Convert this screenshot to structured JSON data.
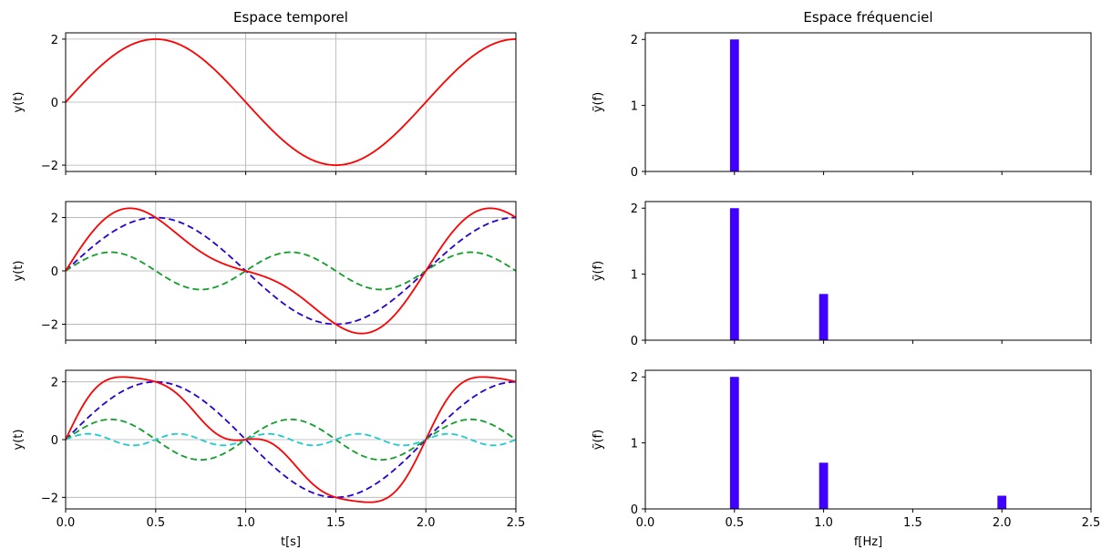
{
  "chart_data": [
    {
      "type": "line",
      "panel": "time-1",
      "title": "Espace temporel",
      "xlabel": "",
      "ylabel": "y(t)",
      "xlim": [
        0,
        2.5
      ],
      "ylim": [
        -2.2,
        2.2
      ],
      "xticks": [
        "0.0",
        "0.5",
        "1.0",
        "1.5",
        "2.0",
        "2.5"
      ],
      "yticks": [
        -2,
        0,
        2
      ],
      "ytick_labels": [
        "−2",
        "0",
        "2"
      ],
      "grid": true,
      "series": [
        {
          "role": "total",
          "color": "#ff0000",
          "style": "solid",
          "components": [
            {
              "amp": 2,
              "freq": 0.5
            }
          ]
        }
      ]
    },
    {
      "type": "line",
      "panel": "time-2",
      "title": "",
      "xlabel": "",
      "ylabel": "y(t)",
      "xlim": [
        0,
        2.5
      ],
      "ylim": [
        -2.6,
        2.6
      ],
      "xticks": [
        "0.0",
        "0.5",
        "1.0",
        "1.5",
        "2.0",
        "2.5"
      ],
      "yticks": [
        -2,
        0,
        2
      ],
      "ytick_labels": [
        "−2",
        "0",
        "2"
      ],
      "grid": true,
      "series": [
        {
          "role": "component",
          "color": "#2a00d4",
          "style": "dashed",
          "components": [
            {
              "amp": 2,
              "freq": 0.5
            }
          ]
        },
        {
          "role": "component",
          "color": "#109e2a",
          "style": "dashed",
          "components": [
            {
              "amp": 0.7,
              "freq": 1
            }
          ]
        },
        {
          "role": "total",
          "color": "#ff0000",
          "style": "solid",
          "components": [
            {
              "amp": 2,
              "freq": 0.5
            },
            {
              "amp": 0.7,
              "freq": 1
            }
          ]
        }
      ]
    },
    {
      "type": "line",
      "panel": "time-3",
      "title": "",
      "xlabel": "t[s]",
      "ylabel": "y(t)",
      "xlim": [
        0,
        2.5
      ],
      "ylim": [
        -2.4,
        2.4
      ],
      "xticks": [
        "0.0",
        "0.5",
        "1.0",
        "1.5",
        "2.0",
        "2.5"
      ],
      "yticks": [
        -2,
        0,
        2
      ],
      "ytick_labels": [
        "−2",
        "0",
        "2"
      ],
      "grid": true,
      "series": [
        {
          "role": "component",
          "color": "#2a00d4",
          "style": "dashed",
          "components": [
            {
              "amp": 2,
              "freq": 0.5
            }
          ]
        },
        {
          "role": "component",
          "color": "#109e2a",
          "style": "dashed",
          "components": [
            {
              "amp": 0.7,
              "freq": 1
            }
          ]
        },
        {
          "role": "component",
          "color": "#1ccbcb",
          "style": "dashed",
          "components": [
            {
              "amp": 0.2,
              "freq": 2
            }
          ]
        },
        {
          "role": "total",
          "color": "#ff0000",
          "style": "solid",
          "components": [
            {
              "amp": 2,
              "freq": 0.5
            },
            {
              "amp": 0.7,
              "freq": 1
            },
            {
              "amp": 0.2,
              "freq": 2
            }
          ]
        }
      ]
    },
    {
      "type": "bar",
      "panel": "freq-1",
      "title": "Espace fréquenciel",
      "xlabel": "",
      "ylabel": "ỹ(f)",
      "xlim": [
        0,
        2.5
      ],
      "ylim": [
        0,
        2.1
      ],
      "xticks": [
        "0.0",
        "0.5",
        "1.0",
        "1.5",
        "2.0",
        "2.5"
      ],
      "yticks": [
        0,
        1,
        2
      ],
      "ytick_labels": [
        "0",
        "1",
        "2"
      ],
      "grid": false,
      "color": "#3f00ff",
      "bar_width": 0.05,
      "x": [
        0.5
      ],
      "values": [
        2
      ]
    },
    {
      "type": "bar",
      "panel": "freq-2",
      "title": "",
      "xlabel": "",
      "ylabel": "ỹ(f)",
      "xlim": [
        0,
        2.5
      ],
      "ylim": [
        0,
        2.1
      ],
      "xticks": [
        "0.0",
        "0.5",
        "1.0",
        "1.5",
        "2.0",
        "2.5"
      ],
      "yticks": [
        0,
        1,
        2
      ],
      "ytick_labels": [
        "0",
        "1",
        "2"
      ],
      "grid": false,
      "color": "#3f00ff",
      "bar_width": 0.05,
      "x": [
        0.5,
        1.0
      ],
      "values": [
        2,
        0.7
      ]
    },
    {
      "type": "bar",
      "panel": "freq-3",
      "title": "",
      "xlabel": "f[Hz]",
      "ylabel": "ỹ(f)",
      "xlim": [
        0,
        2.5
      ],
      "ylim": [
        0,
        2.1
      ],
      "xticks": [
        "0.0",
        "0.5",
        "1.0",
        "1.5",
        "2.0",
        "2.5"
      ],
      "yticks": [
        0,
        1,
        2
      ],
      "ytick_labels": [
        "0",
        "1",
        "2"
      ],
      "grid": false,
      "color": "#3f00ff",
      "bar_width": 0.05,
      "x": [
        0.5,
        1.0,
        2.0
      ],
      "values": [
        2,
        0.7,
        0.2
      ]
    }
  ]
}
